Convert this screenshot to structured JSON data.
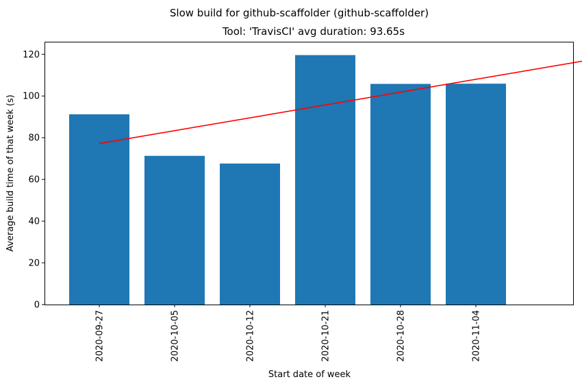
{
  "chart_data": {
    "type": "bar",
    "title": "Slow build for github-scaffolder (github-scaffolder)",
    "subtitle": "Tool: 'TravisCI' avg duration: 93.65s",
    "xlabel": "Start date of week",
    "ylabel": "Average build time of that week (s)",
    "categories": [
      "2020-09-27",
      "2020-10-05",
      "2020-10-12",
      "2020-10-21",
      "2020-10-28",
      "2020-11-04"
    ],
    "values": [
      91.2,
      71.3,
      67.6,
      119.6,
      105.8,
      105.9
    ],
    "bar_color": "#1f77b4",
    "trend": {
      "color": "#ff0000",
      "start": {
        "x": "2020-09-27",
        "y": 77.2
      },
      "end": {
        "x": "2020-11-11",
        "y": 116.8
      }
    },
    "ylim": [
      0,
      126
    ],
    "yticks": [
      0,
      20,
      40,
      60,
      80,
      100,
      120
    ],
    "grid": false,
    "legend": "none"
  }
}
